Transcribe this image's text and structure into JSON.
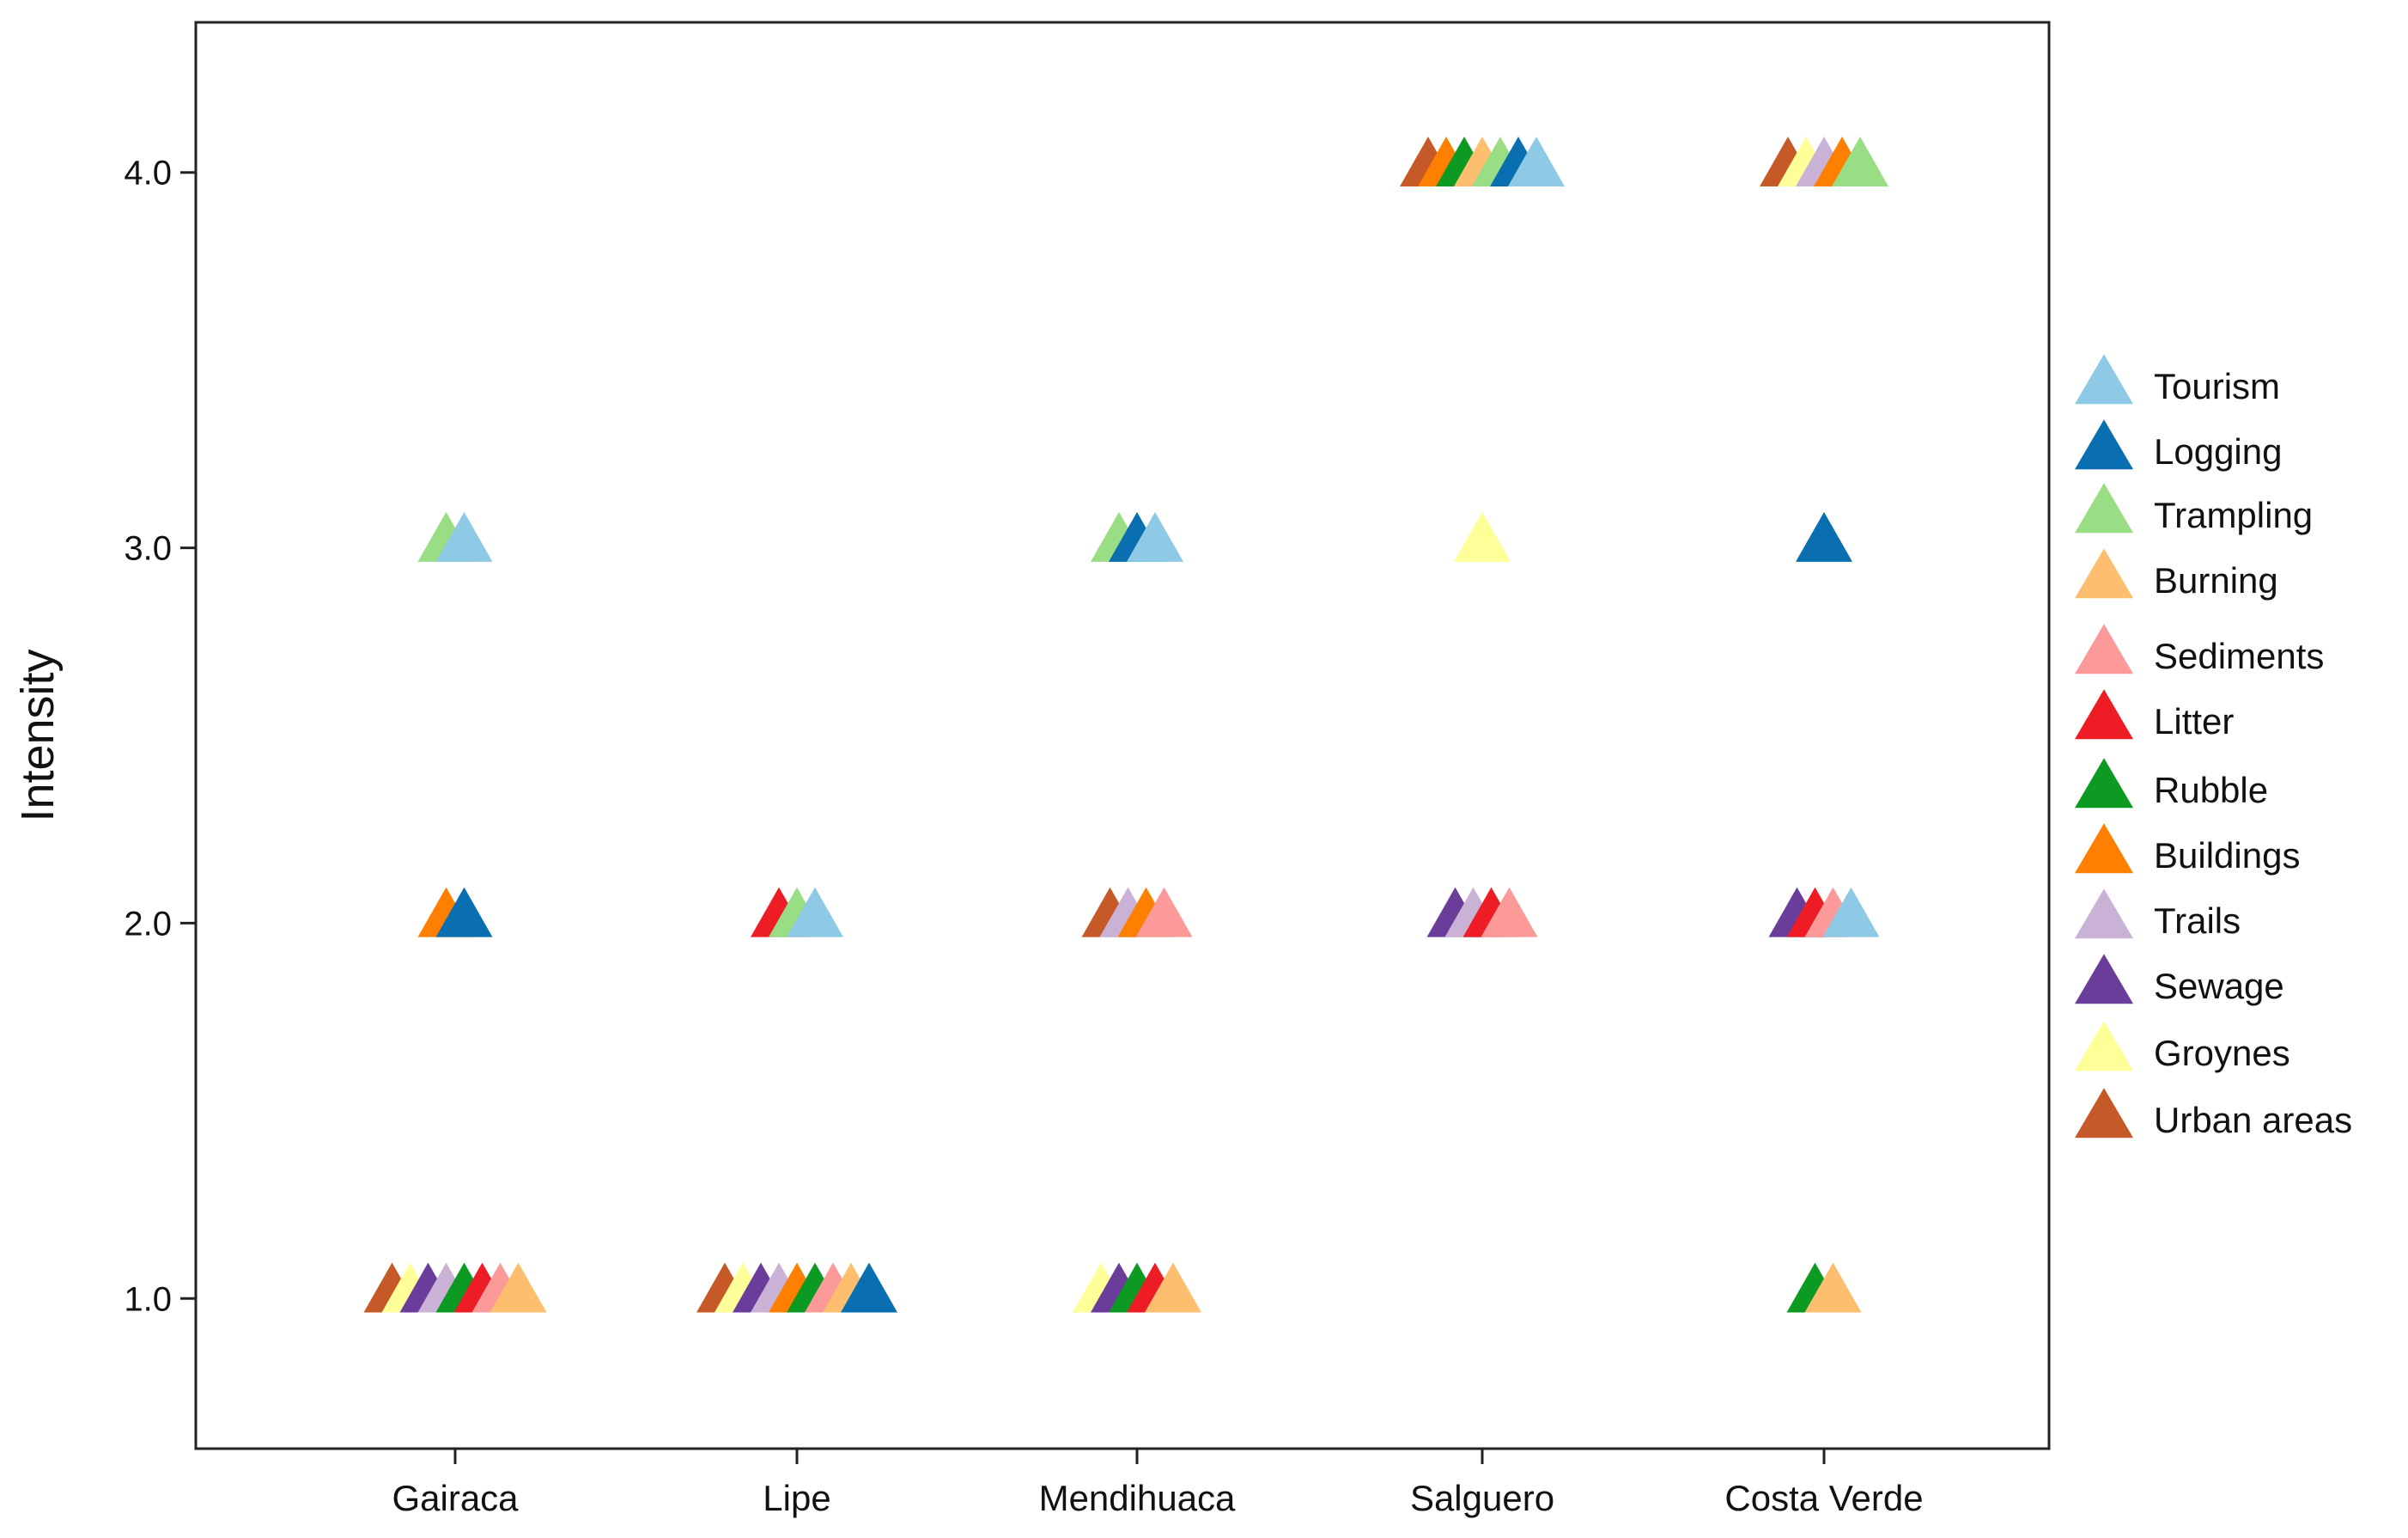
{
  "chart_data": {
    "type": "scatter",
    "ylabel": "Intensity",
    "xlabel": "",
    "ylim": [
      0.6,
      4.4
    ],
    "yticks": [
      1.0,
      2.0,
      3.0,
      4.0
    ],
    "ytick_labels": [
      "1.0",
      "2.0",
      "3.0",
      "4.0"
    ],
    "categories": [
      "Gairaca",
      "Lipe",
      "Mendihuaca",
      "Salguero",
      "Costa Verde"
    ],
    "grid": false,
    "legend_position": "right",
    "marker": "triangle",
    "series": [
      {
        "name": "Tourism",
        "color": "#8ecae6",
        "values": {
          "Gairaca": 3,
          "Lipe": 2,
          "Mendihuaca": 3,
          "Salguero": 4,
          "Costa Verde": 2
        }
      },
      {
        "name": "Logging",
        "color": "#0a6fb0",
        "values": {
          "Gairaca": 2,
          "Lipe": 1,
          "Mendihuaca": 3,
          "Salguero": 4,
          "Costa Verde": 3
        }
      },
      {
        "name": "Trampling",
        "color": "#99dd84",
        "values": {
          "Gairaca": 3,
          "Lipe": 2,
          "Mendihuaca": 3,
          "Salguero": 4,
          "Costa Verde": 4
        }
      },
      {
        "name": "Burning",
        "color": "#fdbf6f",
        "values": {
          "Gairaca": 1,
          "Lipe": 1,
          "Mendihuaca": 1,
          "Salguero": 4,
          "Costa Verde": 1
        }
      },
      {
        "name": "Sediments",
        "color": "#fb9a99",
        "values": {
          "Gairaca": 1,
          "Lipe": 1,
          "Mendihuaca": 2,
          "Salguero": 2,
          "Costa Verde": 2
        }
      },
      {
        "name": "Litter",
        "color": "#ee1c24",
        "values": {
          "Gairaca": 1,
          "Lipe": 2,
          "Mendihuaca": 1,
          "Salguero": 2,
          "Costa Verde": 2
        }
      },
      {
        "name": "Rubble",
        "color": "#0c9a22",
        "values": {
          "Gairaca": 1,
          "Lipe": 1,
          "Mendihuaca": 1,
          "Salguero": 4,
          "Costa Verde": 1
        }
      },
      {
        "name": "Buildings",
        "color": "#ff7f00",
        "values": {
          "Gairaca": 2,
          "Lipe": 1,
          "Mendihuaca": 2,
          "Salguero": 4,
          "Costa Verde": 4
        }
      },
      {
        "name": "Trails",
        "color": "#cab2d6",
        "values": {
          "Gairaca": 1,
          "Lipe": 1,
          "Mendihuaca": 2,
          "Salguero": 2,
          "Costa Verde": 4
        }
      },
      {
        "name": "Sewage",
        "color": "#6a3d9a",
        "values": {
          "Gairaca": 1,
          "Lipe": 1,
          "Mendihuaca": 1,
          "Salguero": 2,
          "Costa Verde": 2
        }
      },
      {
        "name": "Groynes",
        "color": "#ffff99",
        "values": {
          "Gairaca": 1,
          "Lipe": 1,
          "Mendihuaca": 1,
          "Salguero": 3,
          "Costa Verde": 4
        }
      },
      {
        "name": "Urban areas",
        "color": "#c55a28",
        "values": {
          "Gairaca": 1,
          "Lipe": 1,
          "Mendihuaca": 2,
          "Salguero": 4,
          "Costa Verde": 4
        }
      }
    ]
  }
}
